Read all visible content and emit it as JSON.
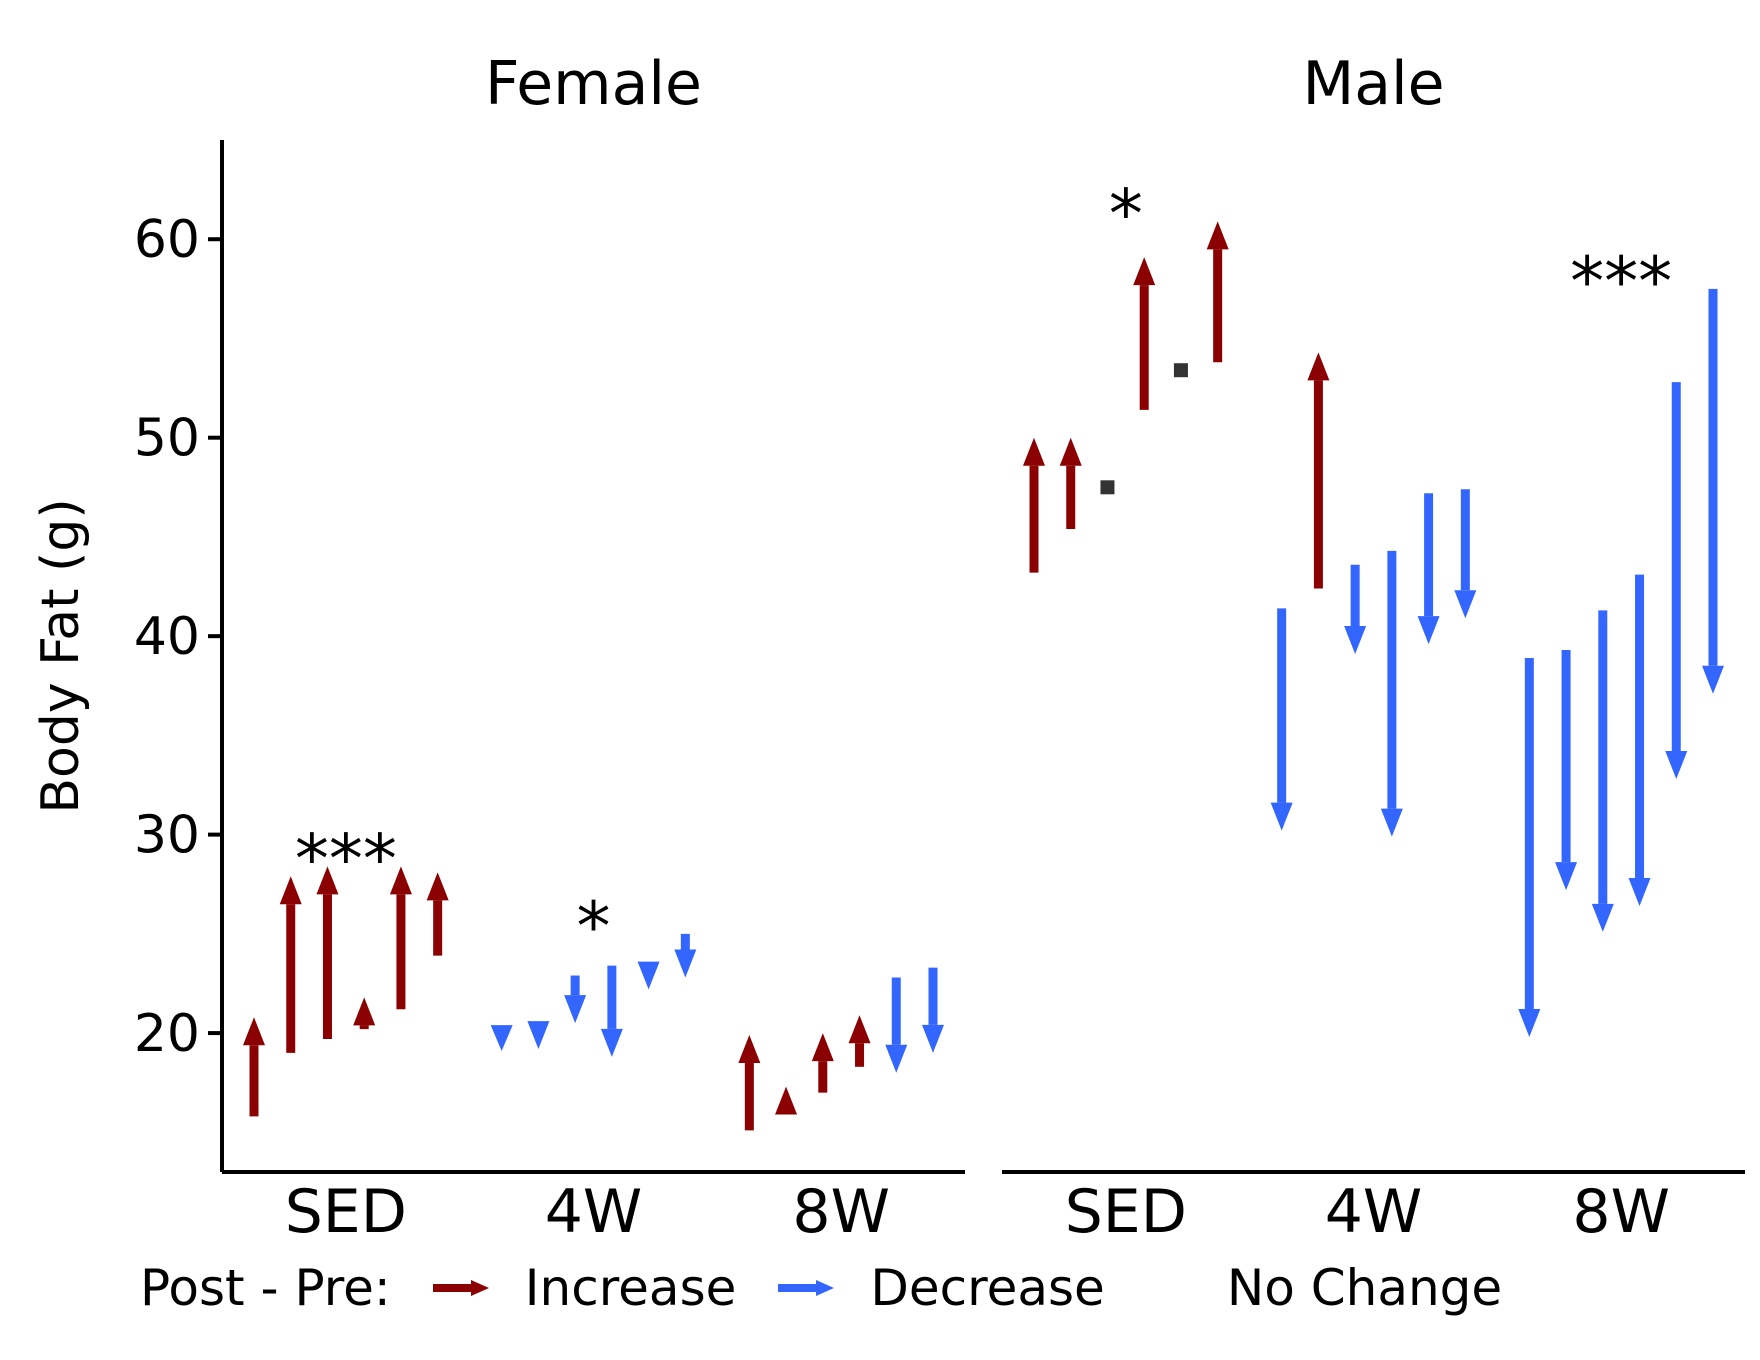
{
  "chart_data": {
    "type": "arrow",
    "ylabel": "Body Fat (g)",
    "ylim": [
      13,
      65
    ],
    "yticks": [
      20,
      30,
      40,
      50,
      60
    ],
    "categories": [
      "SED",
      "4W",
      "8W"
    ],
    "legend": {
      "title": "Post - Pre:",
      "items": [
        {
          "label": "Increase",
          "color": "#8B0000"
        },
        {
          "label": "Decrease",
          "color": "#3366FF"
        },
        {
          "label": "No Change",
          "color": "#333333"
        }
      ]
    },
    "panels": [
      {
        "name": "Female",
        "groups": [
          {
            "category": "SED",
            "significance": "***",
            "pairs": [
              [
                15.8,
                20.8
              ],
              [
                19.0,
                27.9
              ],
              [
                19.7,
                28.4
              ],
              [
                20.2,
                21.8
              ],
              [
                21.2,
                28.4
              ],
              [
                23.9,
                28.1
              ]
            ]
          },
          {
            "category": "4W",
            "significance": "*",
            "pairs": [
              [
                20.4,
                19.1
              ],
              [
                20.6,
                19.2
              ],
              [
                22.9,
                20.5
              ],
              [
                23.4,
                18.8
              ],
              [
                23.6,
                22.2
              ],
              [
                25.0,
                22.8
              ]
            ]
          },
          {
            "category": "8W",
            "significance": "",
            "pairs": [
              [
                15.1,
                19.9
              ],
              [
                15.9,
                17.3
              ],
              [
                17.0,
                20.0
              ],
              [
                18.3,
                20.9
              ],
              [
                22.8,
                18.0
              ],
              [
                23.3,
                19.0
              ]
            ]
          }
        ]
      },
      {
        "name": "Male",
        "groups": [
          {
            "category": "SED",
            "significance": "*",
            "pairs": [
              [
                43.2,
                50.0
              ],
              [
                45.4,
                50.0
              ],
              [
                47.5,
                47.5
              ],
              [
                51.4,
                59.1
              ],
              [
                53.4,
                53.4
              ],
              [
                53.8,
                60.9
              ]
            ]
          },
          {
            "category": "4W",
            "significance": "",
            "pairs": [
              [
                41.4,
                30.2
              ],
              [
                42.4,
                54.3
              ],
              [
                43.6,
                39.1
              ],
              [
                44.3,
                29.9
              ],
              [
                47.2,
                39.6
              ],
              [
                47.4,
                40.9
              ]
            ]
          },
          {
            "category": "8W",
            "significance": "***",
            "pairs": [
              [
                38.9,
                19.8
              ],
              [
                39.3,
                27.2
              ],
              [
                41.3,
                25.1
              ],
              [
                43.1,
                26.4
              ],
              [
                52.8,
                32.8
              ],
              [
                57.5,
                37.1
              ]
            ]
          }
        ]
      }
    ]
  }
}
